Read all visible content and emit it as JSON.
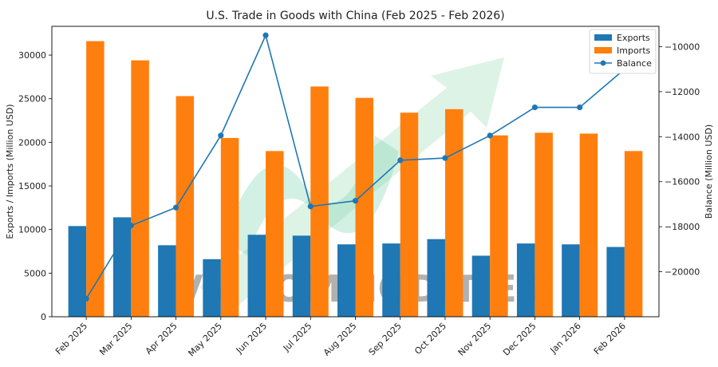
{
  "chart_data": {
    "type": "bar",
    "title": "U.S. Trade in Goods with China (Feb 2025 - Feb 2026)",
    "categories": [
      "Feb 2025",
      "Mar 2025",
      "Apr 2025",
      "May 2025",
      "Jun 2025",
      "Jul 2025",
      "Aug 2025",
      "Sep 2025",
      "Oct 2025",
      "Nov 2025",
      "Dec 2025",
      "Jan 2026",
      "Feb 2026"
    ],
    "ylabel": "Exports / Imports (Million USD)",
    "y2label": "Balance (Million USD)",
    "ylim": [
      0,
      33300
    ],
    "y2lim": [
      -22000,
      -9100
    ],
    "yticks": [
      0,
      5000,
      10000,
      15000,
      20000,
      25000,
      30000
    ],
    "y2ticks": [
      -20000,
      -18000,
      -16000,
      -14000,
      -12000,
      -10000
    ],
    "grid": false,
    "legend_position": "top-right",
    "series": [
      {
        "name": "Exports",
        "type": "bar",
        "axis": "left",
        "color": "#1f77b4",
        "values": [
          10400,
          11400,
          8200,
          6600,
          9400,
          9300,
          8300,
          8400,
          8900,
          7000,
          8400,
          8300,
          8000
        ]
      },
      {
        "name": "Imports",
        "type": "bar",
        "axis": "left",
        "color": "#ff7f0e",
        "values": [
          31600,
          29400,
          25300,
          20500,
          19000,
          26400,
          25100,
          23400,
          23800,
          20800,
          21100,
          21000,
          19000
        ]
      },
      {
        "name": "Balance",
        "type": "line",
        "axis": "right",
        "color": "#1f77b4",
        "values": [
          -21200,
          -17950,
          -17150,
          -13950,
          -9500,
          -17100,
          -16850,
          -15050,
          -14950,
          -13950,
          -12700,
          -12700,
          -11000
        ]
      }
    ]
  },
  "watermark": {
    "text": "VN COMMODITIES",
    "arrow_color": "#9fdcb8"
  }
}
